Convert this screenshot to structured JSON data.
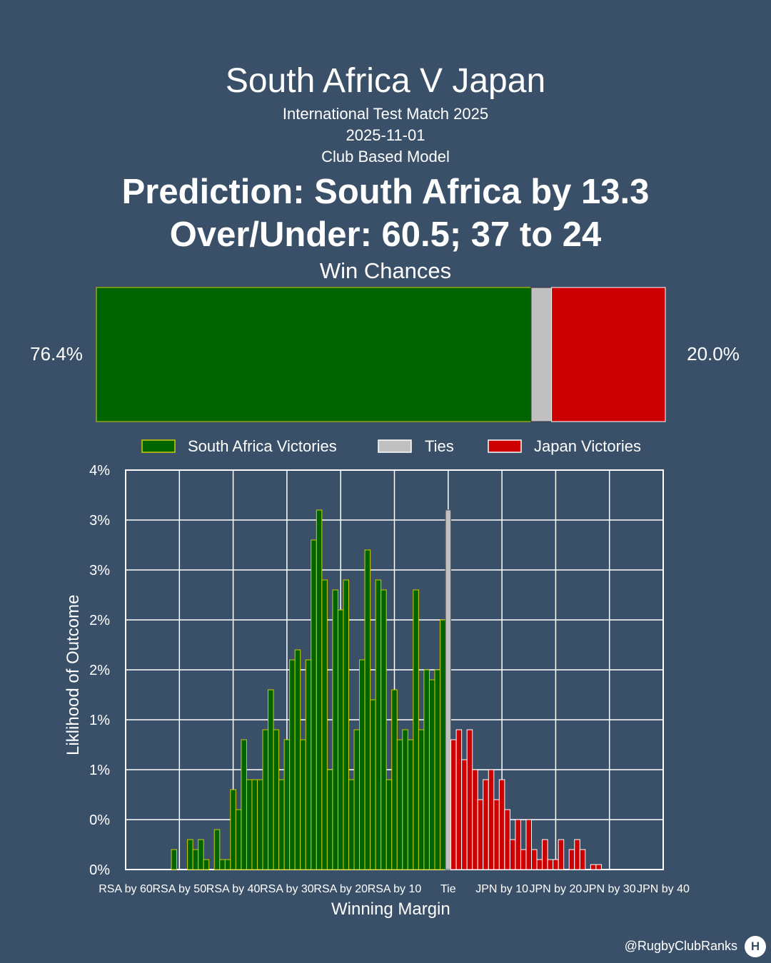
{
  "header": {
    "title": "South Africa V Japan",
    "competition": "International Test Match 2025",
    "date": "2025-11-01",
    "model": "Club Based Model",
    "prediction": "Prediction: South Africa by 13.3",
    "over_under": "Over/Under: 60.5; 37 to 24"
  },
  "footer": {
    "handle": "@RugbyClubRanks",
    "logo_glyph": "H"
  },
  "colors": {
    "background": "#3a5068",
    "home": "#006400",
    "home_edge": "#cccc00",
    "tie": "#c0c0c0",
    "away": "#cc0000",
    "grid": "#ffffff"
  },
  "chart_data": [
    {
      "type": "bar",
      "orientation": "horizontal-stacked",
      "title": "Win Chances",
      "series": [
        {
          "name": "South Africa Victories",
          "value": 76.4,
          "label": "76.4%",
          "color": "#006400"
        },
        {
          "name": "Ties",
          "value": 3.6,
          "label": "",
          "color": "#c0c0c0"
        },
        {
          "name": "Japan Victories",
          "value": 20.0,
          "label": "20.0%",
          "color": "#cc0000"
        }
      ]
    },
    {
      "type": "bar",
      "xlabel": "Winning Margin",
      "ylabel": "Liklihood of Outcome",
      "xlim": [
        -60,
        40
      ],
      "ylim": [
        0,
        4
      ],
      "xticks": [
        -60,
        -50,
        -40,
        -30,
        -20,
        -10,
        0,
        10,
        20,
        30,
        40
      ],
      "xtick_labels": [
        "RSA by 60",
        "RSA by 50",
        "RSA by 40",
        "RSA by 30",
        "RSA by 20",
        "RSA by 10",
        "Tie",
        "JPN by 10",
        "JPN by 20",
        "JPN by 30",
        "JPN by 40"
      ],
      "yticks": [
        0,
        0.5,
        1,
        1.5,
        2,
        2.5,
        3,
        3.5,
        4
      ],
      "ytick_labels": [
        "0%",
        "0%",
        "1%",
        "1%",
        "2%",
        "2%",
        "3%",
        "3%",
        "4%"
      ],
      "grid": true,
      "legend": "top",
      "series": [
        {
          "name": "South Africa Victories",
          "color": "#006400",
          "x": [
            -51,
            -48,
            -47,
            -46,
            -45,
            -43,
            -42,
            -41,
            -40,
            -39,
            -38,
            -37,
            -36,
            -35,
            -34,
            -33,
            -32,
            -31,
            -30,
            -29,
            -28,
            -27,
            -26,
            -25,
            -24,
            -23,
            -22,
            -21,
            -20,
            -19,
            -18,
            -17,
            -16,
            -15,
            -14,
            -13,
            -12,
            -11,
            -10,
            -9,
            -8,
            -7,
            -6,
            -5,
            -4,
            -3,
            -2,
            -1
          ],
          "values": [
            0.2,
            0.3,
            0.2,
            0.3,
            0.1,
            0.4,
            0.1,
            0.1,
            0.8,
            0.6,
            1.3,
            0.9,
            0.9,
            0.9,
            1.4,
            1.8,
            1.4,
            0.9,
            1.3,
            2.1,
            2.2,
            1.3,
            2.1,
            3.3,
            3.6,
            2.9,
            1.0,
            2.8,
            2.6,
            2.9,
            0.9,
            1.4,
            2.1,
            3.2,
            1.7,
            2.9,
            2.8,
            0.9,
            1.8,
            1.3,
            1.4,
            1.3,
            2.8,
            1.4,
            2.0,
            1.9,
            2.0,
            2.5
          ]
        },
        {
          "name": "Ties",
          "color": "#c0c0c0",
          "x": [
            0
          ],
          "values": [
            3.6
          ]
        },
        {
          "name": "Japan Victories",
          "color": "#cc0000",
          "x": [
            1,
            2,
            3,
            4,
            5,
            6,
            7,
            8,
            9,
            10,
            11,
            12,
            13,
            14,
            15,
            16,
            17,
            18,
            19,
            20,
            21,
            22,
            23,
            24,
            25,
            26,
            27,
            28
          ],
          "values": [
            1.3,
            1.4,
            1.1,
            1.4,
            1.0,
            0.7,
            0.9,
            1.0,
            0.7,
            0.9,
            0.6,
            0.3,
            0.5,
            0.2,
            0.5,
            0.2,
            0.1,
            0.3,
            0.1,
            0.1,
            0.3,
            0.0,
            0.2,
            0.3,
            0.2,
            0.0,
            0.05,
            0.05
          ]
        }
      ]
    }
  ]
}
